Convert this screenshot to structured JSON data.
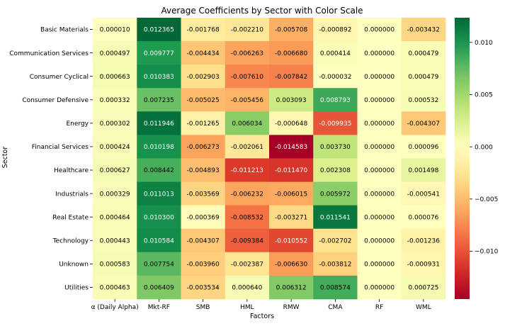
{
  "chart_data": {
    "type": "heatmap",
    "title": "Average Coefficients by Sector with Color Scale",
    "xlabel": "Factors",
    "ylabel": "Sector",
    "columns": [
      "α (Daily Alpha)",
      "Mkt-RF",
      "SMB",
      "HML",
      "RMW",
      "CMA",
      "RF",
      "WML"
    ],
    "rows": [
      "Basic Materials",
      "Communication Services",
      "Consumer Cyclical",
      "Consumer Defensive",
      "Energy",
      "Financial Services",
      "Healthcare",
      "Industrials",
      "Real Estate",
      "Technology",
      "Unknown",
      "Utilities"
    ],
    "values": [
      [
        1e-05,
        0.012365,
        -0.001768,
        -0.00221,
        -0.005708,
        -0.000892,
        0.0,
        -0.003432
      ],
      [
        0.000497,
        0.009777,
        -0.004434,
        -0.006263,
        -0.00668,
        0.000414,
        0.0,
        0.000479
      ],
      [
        0.000663,
        0.010383,
        -0.002903,
        -0.00761,
        -0.007842,
        -3.2e-05,
        0.0,
        0.000479
      ],
      [
        0.000332,
        0.007235,
        -0.005025,
        -0.005456,
        0.003093,
        0.008793,
        0.0,
        0.000532
      ],
      [
        0.000302,
        0.011946,
        -0.001265,
        0.006034,
        -0.000648,
        -0.009935,
        0.0,
        -0.004307
      ],
      [
        0.000424,
        0.010198,
        -0.006273,
        -0.002061,
        -0.014583,
        0.00373,
        0.0,
        9.6e-05
      ],
      [
        0.000627,
        0.008442,
        -0.004893,
        -0.011213,
        -0.01147,
        0.002308,
        0.0,
        0.001498
      ],
      [
        0.000329,
        0.011013,
        -0.003569,
        -0.006232,
        -0.006015,
        0.005972,
        0.0,
        -0.000541
      ],
      [
        0.000464,
        0.0103,
        -0.000369,
        -0.008532,
        -0.003271,
        0.011541,
        0.0,
        7.6e-05
      ],
      [
        0.000443,
        0.010584,
        -0.004307,
        -0.009384,
        -0.010552,
        -0.002702,
        0.0,
        -0.001236
      ],
      [
        0.000583,
        0.007754,
        -0.00396,
        -0.002387,
        -0.00663,
        -0.003812,
        0.0,
        -0.000931
      ],
      [
        0.000463,
        0.006409,
        -0.003534,
        0.00064,
        0.006312,
        0.008574,
        0.0,
        0.000725
      ]
    ],
    "cell_labels": [
      [
        "0.000010",
        "0.012365",
        "-0.001768",
        "-0.002210",
        "-0.005708",
        "-0.000892",
        "0.000000",
        "-0.003432"
      ],
      [
        "0.000497",
        "0.009777",
        "-0.004434",
        "-0.006263",
        "-0.006680",
        "0.000414",
        "0.000000",
        "0.000479"
      ],
      [
        "0.000663",
        "0.010383",
        "-0.002903",
        "-0.007610",
        "-0.007842",
        "-0.000032",
        "0.000000",
        "0.000479"
      ],
      [
        "0.000332",
        "0.007235",
        "-0.005025",
        "-0.005456",
        "0.003093",
        "0.008793",
        "0.000000",
        "0.000532"
      ],
      [
        "0.000302",
        "0.011946",
        "-0.001265",
        "0.006034",
        "-0.000648",
        "-0.009935",
        "0.000000",
        "-0.004307"
      ],
      [
        "0.000424",
        "0.010198",
        "-0.006273",
        "-0.002061",
        "-0.014583",
        "0.003730",
        "0.000000",
        "0.000096"
      ],
      [
        "0.000627",
        "0.008442",
        "-0.004893",
        "-0.011213",
        "-0.011470",
        "0.002308",
        "0.000000",
        "0.001498"
      ],
      [
        "0.000329",
        "0.011013",
        "-0.003569",
        "-0.006232",
        "-0.006015",
        "0.005972",
        "0.000000",
        "-0.000541"
      ],
      [
        "0.000464",
        "0.010300",
        "-0.000369",
        "-0.008532",
        "-0.003271",
        "0.011541",
        "0.000000",
        "0.000076"
      ],
      [
        "0.000443",
        "0.010584",
        "-0.004307",
        "-0.009384",
        "-0.010552",
        "-0.002702",
        "0.000000",
        "-0.001236"
      ],
      [
        "0.000583",
        "0.007754",
        "-0.003960",
        "-0.002387",
        "-0.006630",
        "-0.003812",
        "0.000000",
        "-0.000931"
      ],
      [
        "0.000463",
        "0.006409",
        "-0.003534",
        "0.000640",
        "0.006312",
        "0.008574",
        "0.000000",
        "0.000725"
      ]
    ],
    "colorscale": "RdYlGn",
    "vmin": -0.014583,
    "vmax": 0.012365,
    "colorbar_ticks": [
      0.01,
      0.005,
      0.0,
      -0.005,
      -0.01
    ],
    "colorbar_tick_labels": [
      "0.010",
      "0.005",
      "0.000",
      "−0.005",
      "−0.010"
    ],
    "colorbar_placement": "right",
    "grid": false
  }
}
